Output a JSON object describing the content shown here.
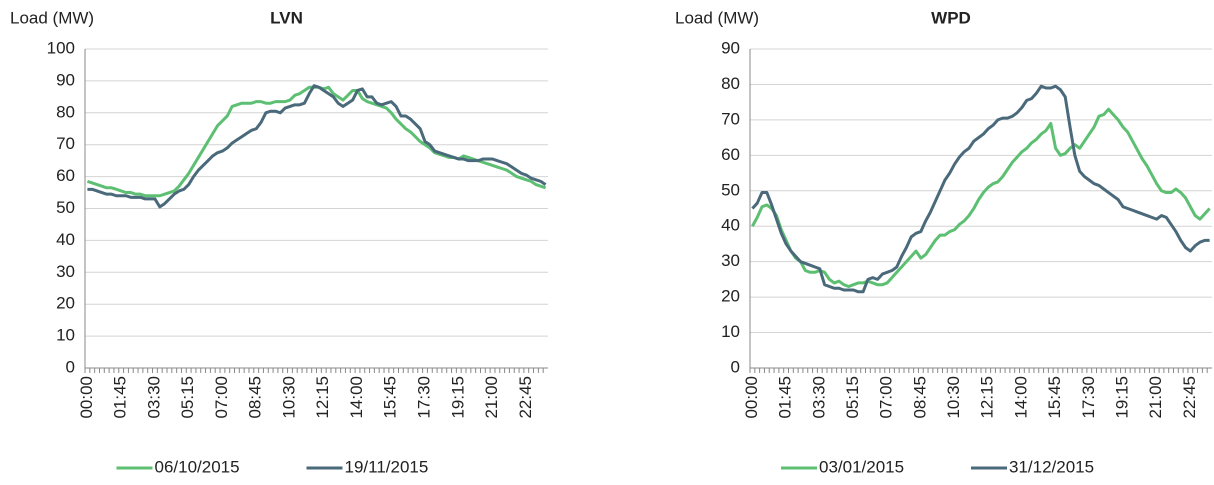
{
  "chart_data": [
    {
      "type": "line",
      "title": "LVN",
      "y_label": "Load (MW)",
      "categories": [
        "00:00",
        null,
        null,
        null,
        null,
        null,
        null,
        "01:45",
        null,
        null,
        null,
        null,
        null,
        null,
        "03:30",
        null,
        null,
        null,
        null,
        null,
        null,
        "05:15",
        null,
        null,
        null,
        null,
        null,
        null,
        "07:00",
        null,
        null,
        null,
        null,
        null,
        null,
        "08:45",
        null,
        null,
        null,
        null,
        null,
        null,
        "10:30",
        null,
        null,
        null,
        null,
        null,
        null,
        "12:15",
        null,
        null,
        null,
        null,
        null,
        null,
        "14:00",
        null,
        null,
        null,
        null,
        null,
        null,
        "15:45",
        null,
        null,
        null,
        null,
        null,
        null,
        "17:30",
        null,
        null,
        null,
        null,
        null,
        null,
        "19:15",
        null,
        null,
        null,
        null,
        null,
        null,
        "21:00",
        null,
        null,
        null,
        null,
        null,
        null,
        "22:45",
        null,
        null,
        null,
        null
      ],
      "ylim": [
        0,
        100
      ],
      "yticks": [
        0,
        10,
        20,
        30,
        40,
        50,
        60,
        70,
        80,
        90,
        100
      ],
      "grid": true,
      "legend": "bottom",
      "series": [
        {
          "name": "06/10/2015",
          "color": "#5cbf72",
          "values": [
            58.5,
            58,
            57.5,
            57,
            56.5,
            56.5,
            56,
            55.5,
            55,
            55,
            54.5,
            54.5,
            54,
            54,
            54,
            54,
            54.5,
            55,
            55.5,
            57,
            59,
            61,
            63.5,
            66,
            68.5,
            71,
            73.5,
            76,
            77.5,
            79,
            82,
            82.5,
            83,
            83,
            83,
            83.5,
            83.5,
            83,
            83,
            83.5,
            83.5,
            83.5,
            84,
            85.5,
            86,
            87,
            88,
            88,
            88,
            87.5,
            88,
            86,
            85,
            84,
            85.5,
            87,
            87,
            84.5,
            83.5,
            83,
            82.5,
            82,
            81.5,
            80,
            78,
            76.5,
            75,
            74,
            72.5,
            71,
            70,
            69,
            67.5,
            67,
            66.5,
            66,
            66,
            65.5,
            66.5,
            66,
            65.5,
            65,
            64.5,
            64,
            63.5,
            63,
            62.5,
            62,
            61,
            60,
            59.5,
            59,
            58.5,
            57.5,
            57,
            56.5
          ]
        },
        {
          "name": "19/11/2015",
          "color": "#4a6a7b",
          "values": [
            56,
            56,
            55.5,
            55,
            54.5,
            54.5,
            54,
            54,
            54,
            53.5,
            53.5,
            53.5,
            53,
            53,
            53,
            50.5,
            51.5,
            53,
            54.5,
            55.5,
            56,
            57.5,
            60,
            62,
            63.5,
            65,
            66.5,
            67.5,
            68,
            69,
            70.5,
            71.5,
            72.5,
            73.5,
            74.5,
            75,
            77,
            80,
            80.5,
            80.5,
            80,
            81.5,
            82,
            82.5,
            82.5,
            83,
            86,
            88.5,
            88,
            87,
            86,
            85,
            83,
            82,
            83,
            84,
            87,
            87.5,
            85,
            85,
            83,
            82.5,
            83,
            83.5,
            82,
            79,
            79,
            78,
            76.5,
            75,
            71,
            70,
            68,
            67.5,
            67,
            66.5,
            66,
            65.5,
            65.5,
            65,
            65,
            65,
            65.5,
            65.5,
            65.5,
            65,
            64.5,
            64,
            63,
            62,
            61,
            60.5,
            59.5,
            59,
            58.5,
            57.5
          ]
        }
      ]
    },
    {
      "type": "line",
      "title": "WPD",
      "y_label": "Load (MW)",
      "categories": [
        "00:00",
        null,
        null,
        null,
        null,
        null,
        null,
        "01:45",
        null,
        null,
        null,
        null,
        null,
        null,
        "03:30",
        null,
        null,
        null,
        null,
        null,
        null,
        "05:15",
        null,
        null,
        null,
        null,
        null,
        null,
        "07:00",
        null,
        null,
        null,
        null,
        null,
        null,
        "08:45",
        null,
        null,
        null,
        null,
        null,
        null,
        "10:30",
        null,
        null,
        null,
        null,
        null,
        null,
        "12:15",
        null,
        null,
        null,
        null,
        null,
        null,
        "14:00",
        null,
        null,
        null,
        null,
        null,
        null,
        "15:45",
        null,
        null,
        null,
        null,
        null,
        null,
        "17:30",
        null,
        null,
        null,
        null,
        null,
        null,
        "19:15",
        null,
        null,
        null,
        null,
        null,
        null,
        "21:00",
        null,
        null,
        null,
        null,
        null,
        null,
        "22:45",
        null,
        null,
        null,
        null
      ],
      "ylim": [
        0,
        90
      ],
      "yticks": [
        0,
        10,
        20,
        30,
        40,
        50,
        60,
        70,
        80,
        90
      ],
      "grid": true,
      "legend": "bottom",
      "series": [
        {
          "name": "03/01/2015",
          "color": "#5cbf72",
          "values": [
            40,
            42.5,
            45.5,
            46,
            45,
            43,
            39,
            36,
            33,
            31,
            30,
            27.5,
            27,
            27,
            27.5,
            27,
            25,
            24,
            24.5,
            23.5,
            23,
            23.5,
            24,
            24,
            24.5,
            24,
            23.5,
            23.5,
            24,
            25.5,
            27,
            28.5,
            30,
            31.5,
            33,
            31,
            32,
            34,
            36,
            37.5,
            37.5,
            38.5,
            39,
            40.5,
            41.5,
            43,
            45,
            47.5,
            49.5,
            51,
            52,
            52.5,
            54,
            56,
            58,
            59.5,
            61,
            62,
            63.5,
            64.5,
            66,
            67,
            69,
            62,
            60,
            60.5,
            62,
            63,
            62,
            64,
            66,
            68,
            71,
            71.5,
            73,
            71.5,
            70,
            68,
            66.5,
            64,
            61.5,
            59,
            57,
            54.5,
            52,
            50,
            49.5,
            49.5,
            50.5,
            49.5,
            48,
            45.5,
            43,
            42,
            43.5,
            45
          ]
        },
        {
          "name": "31/12/2015",
          "color": "#4a6a7b",
          "values": [
            45,
            46.5,
            49.5,
            49.5,
            46,
            42,
            38,
            35,
            33,
            31.5,
            30,
            29.5,
            29,
            28.5,
            28,
            23.5,
            23,
            22.5,
            22.5,
            22,
            22,
            22,
            21.5,
            21.5,
            25,
            25.5,
            25,
            26.5,
            27,
            27.5,
            28.5,
            31.5,
            34,
            37,
            38,
            38.5,
            41.5,
            44,
            47,
            50,
            53,
            55,
            57.5,
            59.5,
            61,
            62,
            64,
            65,
            66,
            67.5,
            68.5,
            70,
            70.5,
            70.5,
            71,
            72,
            73.5,
            75.5,
            76,
            77.5,
            79.5,
            79,
            79,
            79.5,
            78.5,
            76.5,
            68,
            60,
            55.5,
            54,
            53,
            52,
            51.5,
            50.5,
            49.5,
            48.5,
            47.5,
            45.5,
            45,
            44.5,
            44,
            43.5,
            43,
            42.5,
            42,
            43,
            42.5,
            40.5,
            38.5,
            36,
            34,
            33,
            34.5,
            35.5,
            36,
            36
          ]
        }
      ]
    }
  ]
}
